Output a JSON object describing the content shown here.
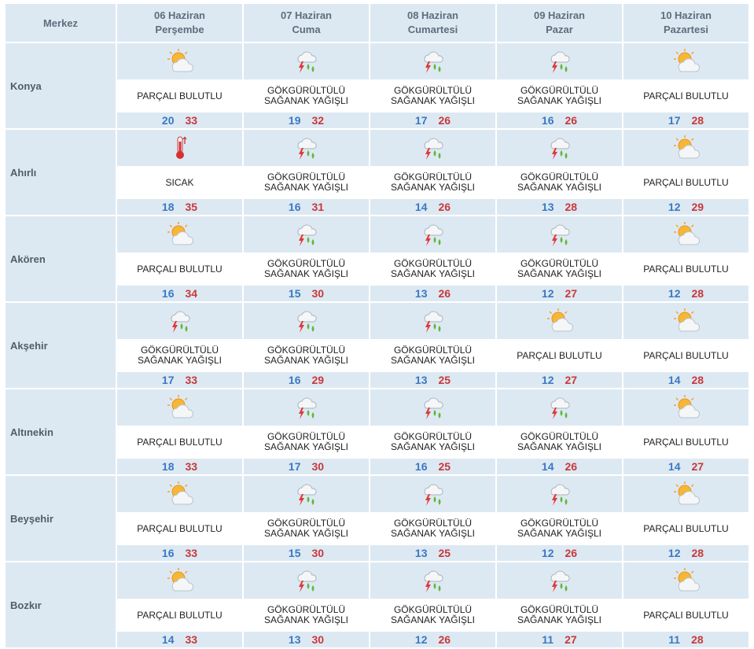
{
  "header": {
    "merkez_label": "Merkez",
    "days": [
      {
        "date": "06 Haziran",
        "day": "Perşembe"
      },
      {
        "date": "07 Haziran",
        "day": "Cuma"
      },
      {
        "date": "08 Haziran",
        "day": "Cumartesi"
      },
      {
        "date": "09 Haziran",
        "day": "Pazar"
      },
      {
        "date": "10 Haziran",
        "day": "Pazartesi"
      }
    ]
  },
  "icons": {
    "partly": "partly-cloudy-icon",
    "storm": "thunderstorm-rain-icon",
    "hot": "thermometer-hot-icon"
  },
  "colors": {
    "header_bg": "#dde9f2",
    "min_temp": "#3a78c4",
    "max_temp": "#c8383b"
  },
  "rows": [
    {
      "city": "Konya",
      "days": [
        {
          "icon": "partly",
          "desc": [
            "PARÇALI BULUTLU"
          ],
          "min": "20",
          "max": "33"
        },
        {
          "icon": "storm",
          "desc": [
            "GÖKGÜRÜLTÜLÜ",
            "SAĞANAK YAĞIŞLI"
          ],
          "min": "19",
          "max": "32"
        },
        {
          "icon": "storm",
          "desc": [
            "GÖKGÜRÜLTÜLÜ",
            "SAĞANAK YAĞIŞLI"
          ],
          "min": "17",
          "max": "26"
        },
        {
          "icon": "storm",
          "desc": [
            "GÖKGÜRÜLTÜLÜ",
            "SAĞANAK YAĞIŞLI"
          ],
          "min": "16",
          "max": "26"
        },
        {
          "icon": "partly",
          "desc": [
            "PARÇALI BULUTLU"
          ],
          "min": "17",
          "max": "28"
        }
      ]
    },
    {
      "city": "Ahırlı",
      "days": [
        {
          "icon": "hot",
          "desc": [
            "SICAK"
          ],
          "min": "18",
          "max": "35"
        },
        {
          "icon": "storm",
          "desc": [
            "GÖKGÜRÜLTÜLÜ",
            "SAĞANAK YAĞIŞLI"
          ],
          "min": "16",
          "max": "31"
        },
        {
          "icon": "storm",
          "desc": [
            "GÖKGÜRÜLTÜLÜ",
            "SAĞANAK YAĞIŞLI"
          ],
          "min": "14",
          "max": "26"
        },
        {
          "icon": "storm",
          "desc": [
            "GÖKGÜRÜLTÜLÜ",
            "SAĞANAK YAĞIŞLI"
          ],
          "min": "13",
          "max": "28"
        },
        {
          "icon": "partly",
          "desc": [
            "PARÇALI BULUTLU"
          ],
          "min": "12",
          "max": "29"
        }
      ]
    },
    {
      "city": "Akören",
      "days": [
        {
          "icon": "partly",
          "desc": [
            "PARÇALI BULUTLU"
          ],
          "min": "16",
          "max": "34"
        },
        {
          "icon": "storm",
          "desc": [
            "GÖKGÜRÜLTÜLÜ",
            "SAĞANAK YAĞIŞLI"
          ],
          "min": "15",
          "max": "30"
        },
        {
          "icon": "storm",
          "desc": [
            "GÖKGÜRÜLTÜLÜ",
            "SAĞANAK YAĞIŞLI"
          ],
          "min": "13",
          "max": "26"
        },
        {
          "icon": "storm",
          "desc": [
            "GÖKGÜRÜLTÜLÜ",
            "SAĞANAK YAĞIŞLI"
          ],
          "min": "12",
          "max": "27"
        },
        {
          "icon": "partly",
          "desc": [
            "PARÇALI BULUTLU"
          ],
          "min": "12",
          "max": "28"
        }
      ]
    },
    {
      "city": "Akşehir",
      "days": [
        {
          "icon": "storm",
          "desc": [
            "GÖKGÜRÜLTÜLÜ",
            "SAĞANAK YAĞIŞLI"
          ],
          "min": "17",
          "max": "33"
        },
        {
          "icon": "storm",
          "desc": [
            "GÖKGÜRÜLTÜLÜ",
            "SAĞANAK YAĞIŞLI"
          ],
          "min": "16",
          "max": "29"
        },
        {
          "icon": "storm",
          "desc": [
            "GÖKGÜRÜLTÜLÜ",
            "SAĞANAK YAĞIŞLI"
          ],
          "min": "13",
          "max": "25"
        },
        {
          "icon": "partly",
          "desc": [
            "PARÇALI BULUTLU"
          ],
          "min": "12",
          "max": "27"
        },
        {
          "icon": "partly",
          "desc": [
            "PARÇALI BULUTLU"
          ],
          "min": "14",
          "max": "28"
        }
      ]
    },
    {
      "city": "Altınekin",
      "days": [
        {
          "icon": "partly",
          "desc": [
            "PARÇALI BULUTLU"
          ],
          "min": "18",
          "max": "33"
        },
        {
          "icon": "storm",
          "desc": [
            "GÖKGÜRÜLTÜLÜ",
            "SAĞANAK YAĞIŞLI"
          ],
          "min": "17",
          "max": "30"
        },
        {
          "icon": "storm",
          "desc": [
            "GÖKGÜRÜLTÜLÜ",
            "SAĞANAK YAĞIŞLI"
          ],
          "min": "16",
          "max": "25"
        },
        {
          "icon": "storm",
          "desc": [
            "GÖKGÜRÜLTÜLÜ",
            "SAĞANAK YAĞIŞLI"
          ],
          "min": "14",
          "max": "26"
        },
        {
          "icon": "partly",
          "desc": [
            "PARÇALI BULUTLU"
          ],
          "min": "14",
          "max": "27"
        }
      ]
    },
    {
      "city": "Beyşehir",
      "days": [
        {
          "icon": "partly",
          "desc": [
            "PARÇALI BULUTLU"
          ],
          "min": "16",
          "max": "33"
        },
        {
          "icon": "storm",
          "desc": [
            "GÖKGÜRÜLTÜLÜ",
            "SAĞANAK YAĞIŞLI"
          ],
          "min": "15",
          "max": "30"
        },
        {
          "icon": "storm",
          "desc": [
            "GÖKGÜRÜLTÜLÜ",
            "SAĞANAK YAĞIŞLI"
          ],
          "min": "13",
          "max": "25"
        },
        {
          "icon": "storm",
          "desc": [
            "GÖKGÜRÜLTÜLÜ",
            "SAĞANAK YAĞIŞLI"
          ],
          "min": "12",
          "max": "26"
        },
        {
          "icon": "partly",
          "desc": [
            "PARÇALI BULUTLU"
          ],
          "min": "12",
          "max": "28"
        }
      ]
    },
    {
      "city": "Bozkır",
      "days": [
        {
          "icon": "partly",
          "desc": [
            "PARÇALI BULUTLU"
          ],
          "min": "14",
          "max": "33"
        },
        {
          "icon": "storm",
          "desc": [
            "GÖKGÜRÜLTÜLÜ",
            "SAĞANAK YAĞIŞLI"
          ],
          "min": "13",
          "max": "30"
        },
        {
          "icon": "storm",
          "desc": [
            "GÖKGÜRÜLTÜLÜ",
            "SAĞANAK YAĞIŞLI"
          ],
          "min": "12",
          "max": "26"
        },
        {
          "icon": "storm",
          "desc": [
            "GÖKGÜRÜLTÜLÜ",
            "SAĞANAK YAĞIŞLI"
          ],
          "min": "11",
          "max": "27"
        },
        {
          "icon": "partly",
          "desc": [
            "PARÇALI BULUTLU"
          ],
          "min": "11",
          "max": "28"
        }
      ]
    }
  ]
}
